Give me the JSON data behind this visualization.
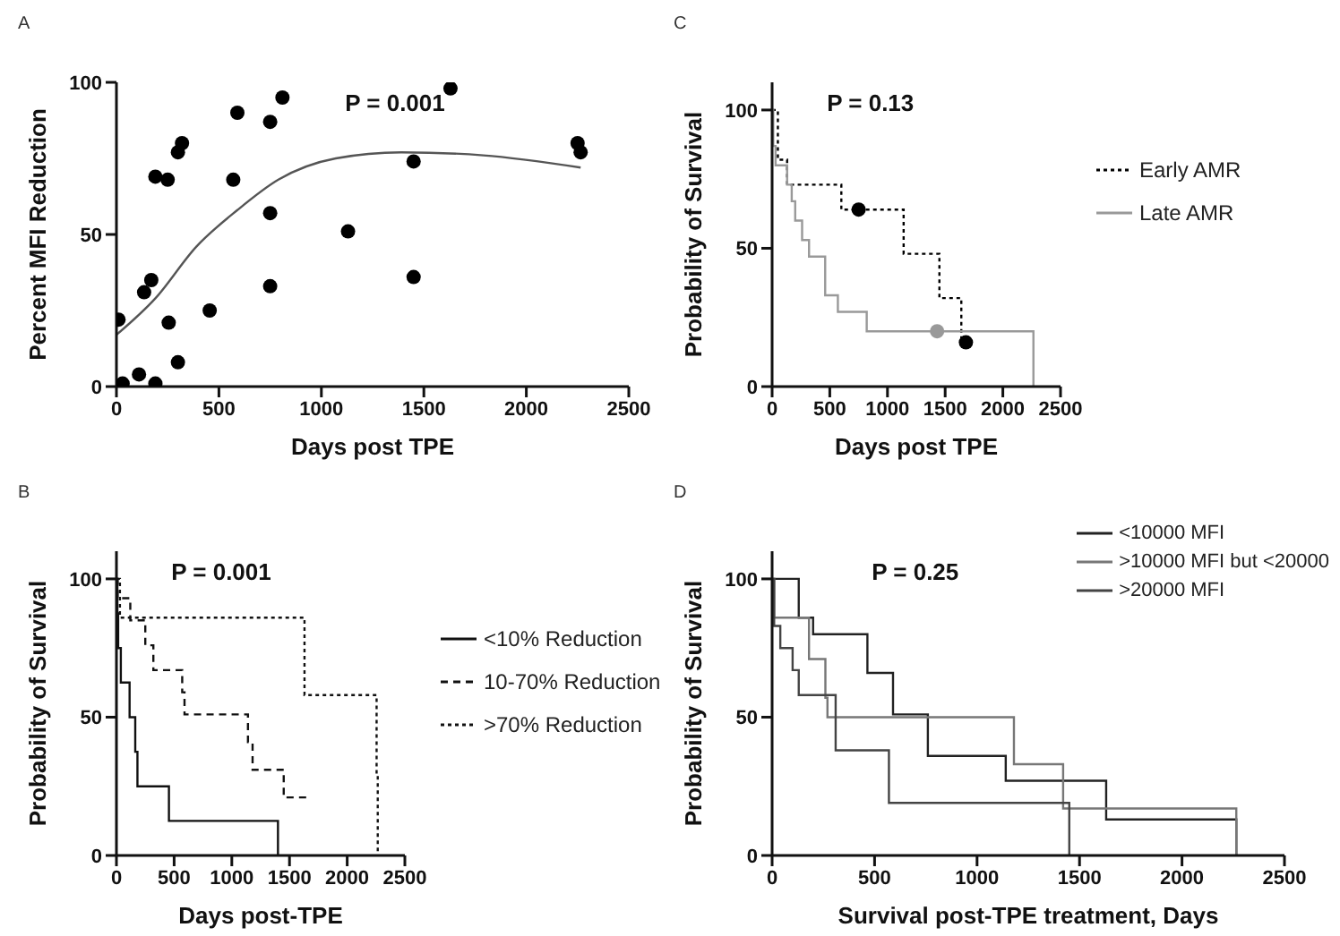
{
  "chart_data": [
    {
      "type": "scatter",
      "title": "A",
      "xlabel": "Days post TPE",
      "ylabel": "Percent MFI Reduction",
      "annotations": [
        "P = 0.001"
      ],
      "xlim": [
        0,
        2500
      ],
      "xticks": [
        0,
        500,
        1000,
        1500,
        2000,
        2500
      ],
      "ylim": [
        0,
        100
      ],
      "yticks": [
        0,
        50,
        100
      ],
      "series": [
        {
          "color": "#000000",
          "x": [
            10,
            30,
            110,
            135,
            170,
            190,
            190,
            250,
            255,
            300,
            300,
            320,
            455,
            570,
            590,
            750,
            750,
            750,
            810,
            1130,
            1450,
            1450,
            1630,
            2250,
            2265
          ],
          "values": [
            22,
            1,
            4,
            31,
            35,
            1,
            69,
            68,
            21,
            8,
            77,
            80,
            25,
            68,
            90,
            33,
            57,
            87,
            95,
            51,
            36,
            74,
            98,
            80,
            77
          ]
        },
        {
          "type": "line",
          "color": "#555555",
          "x": [
            0,
            190,
            390,
            590,
            790,
            1070,
            1390,
            1790,
            2265
          ],
          "values": [
            17,
            29,
            46,
            58,
            68,
            75,
            77,
            76,
            72
          ]
        }
      ]
    },
    {
      "type": "step",
      "title": "C",
      "xlabel": "Days post TPE",
      "ylabel": "Probability of Survival",
      "annotations": [
        "P = 0.13"
      ],
      "legend": "right",
      "xlim": [
        0,
        2500
      ],
      "xticks": [
        0,
        500,
        1000,
        1500,
        2000,
        2500
      ],
      "ylim": [
        0,
        110
      ],
      "yticks": [
        0,
        50,
        100
      ],
      "series": [
        {
          "name": "Early AMR",
          "color": "#000000",
          "line_style": "dotted",
          "x": [
            0,
            50,
            130,
            600,
            1140,
            1450,
            1640,
            1680
          ],
          "values": [
            100,
            82,
            73,
            64,
            48,
            32,
            16,
            16
          ]
        },
        {
          "name": "Late AMR",
          "color": "#999999",
          "line_style": "solid",
          "x": [
            0,
            10,
            30,
            130,
            170,
            200,
            260,
            320,
            460,
            570,
            820,
            2265
          ],
          "values": [
            100,
            87,
            80,
            73,
            67,
            60,
            53,
            47,
            33,
            27,
            20,
            0
          ]
        },
        {
          "type": "scatter",
          "color": "#000000",
          "x": [
            750,
            1680
          ],
          "values": [
            64,
            16
          ]
        },
        {
          "type": "scatter",
          "color": "#999999",
          "x": [
            1430
          ],
          "values": [
            20
          ]
        }
      ]
    },
    {
      "type": "step",
      "title": "B",
      "xlabel": "Days post-TPE",
      "ylabel": "Probability of Survival",
      "annotations": [
        "P = 0.001"
      ],
      "legend": "right",
      "xlim": [
        0,
        2500
      ],
      "xticks": [
        0,
        500,
        1000,
        1500,
        2000,
        2500
      ],
      "ylim": [
        0,
        110
      ],
      "yticks": [
        0,
        50,
        100
      ],
      "series": [
        {
          "name": "<10% Reduction",
          "color": "#111111",
          "line_style": "solid",
          "x": [
            0,
            8,
            15,
            38,
            114,
            163,
            182,
            455,
            1400
          ],
          "values": [
            100,
            87.5,
            75,
            62.5,
            50,
            37.5,
            25,
            12.5,
            0
          ]
        },
        {
          "name": "10-70% Reduction",
          "color": "#111111",
          "line_style": "dashed",
          "x": [
            0,
            10,
            120,
            250,
            320,
            570,
            590,
            1140,
            1180,
            1450,
            1680
          ],
          "values": [
            100,
            93,
            85,
            76,
            67,
            59,
            51,
            41,
            31,
            21,
            21
          ]
        },
        {
          "name": ">70% Reduction",
          "color": "#111111",
          "line_style": "dotted",
          "x": [
            0,
            30,
            1630,
            2255,
            2265
          ],
          "values": [
            100,
            86,
            58,
            29,
            0
          ]
        }
      ]
    },
    {
      "type": "step",
      "title": "D",
      "xlabel": "Survival post-TPE treatment, Days",
      "ylabel": "Probability of Survival",
      "annotations": [
        "P = 0.25"
      ],
      "legend": "top right",
      "xlim": [
        0,
        2500
      ],
      "xticks": [
        0,
        500,
        1000,
        1500,
        2000,
        2500
      ],
      "ylim": [
        0,
        110
      ],
      "yticks": [
        0,
        50,
        100
      ],
      "series": [
        {
          "name": "<10000 MFI",
          "color": "#222222",
          "line_style": "solid",
          "x": [
            0,
            130,
            200,
            465,
            590,
            760,
            1140,
            1630,
            2265
          ],
          "values": [
            100,
            86,
            80,
            66,
            51,
            36,
            27,
            13,
            0
          ]
        },
        {
          "name": ">10000 MFI but <20000",
          "color": "#777777",
          "line_style": "solid",
          "x": [
            0,
            10,
            180,
            260,
            270,
            1180,
            1420,
            2265
          ],
          "values": [
            100,
            86,
            71,
            57,
            50,
            33,
            17,
            0
          ]
        },
        {
          "name": ">20000 MFI",
          "color": "#444444",
          "line_style": "solid",
          "x": [
            0,
            10,
            40,
            100,
            130,
            310,
            570,
            1450
          ],
          "values": [
            100,
            83,
            75,
            67,
            58,
            38,
            19,
            0
          ]
        }
      ]
    }
  ]
}
